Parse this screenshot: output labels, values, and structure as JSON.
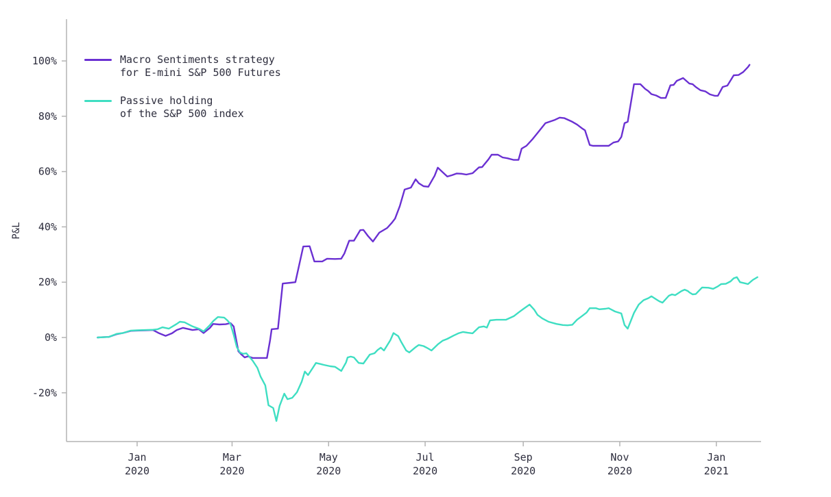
{
  "chart_data": {
    "type": "line",
    "title": "",
    "xlabel": "",
    "ylabel": "P&L",
    "x_unit": "days since 2020-01-01",
    "grid": false,
    "legend_position": "upper-left-inside",
    "ylim": [
      -37,
      115
    ],
    "xlim_days": [
      -45,
      394
    ],
    "y_ticks": [
      {
        "value": 100,
        "label": "100%"
      },
      {
        "value": 80,
        "label": "80%"
      },
      {
        "value": 60,
        "label": "60%"
      },
      {
        "value": 40,
        "label": "40%"
      },
      {
        "value": 20,
        "label": "20%"
      },
      {
        "value": 0,
        "label": "0%"
      },
      {
        "value": -20,
        "label": "-20%"
      }
    ],
    "x_ticks": [
      {
        "day": 0,
        "month": "Jan",
        "year": "2020"
      },
      {
        "day": 60,
        "month": "Mar",
        "year": "2020"
      },
      {
        "day": 121,
        "month": "May",
        "year": "2020"
      },
      {
        "day": 182,
        "month": "Jul",
        "year": "2020"
      },
      {
        "day": 244,
        "month": "Sep",
        "year": "2020"
      },
      {
        "day": 305,
        "month": "Nov",
        "year": "2020"
      },
      {
        "day": 366,
        "month": "Jan",
        "year": "2021"
      }
    ],
    "series": [
      {
        "name": "Macro Sentiments strategy\nfor E-mini S&P 500 Futures",
        "color": "#6a30d2",
        "points": [
          [
            -25,
            0
          ],
          [
            -22,
            0.1
          ],
          [
            -18,
            0.2
          ],
          [
            -13,
            1.2
          ],
          [
            -9,
            1.6
          ],
          [
            -4,
            2.4
          ],
          [
            0,
            2.5
          ],
          [
            5,
            2.6
          ],
          [
            10,
            2.7
          ],
          [
            14,
            1.5
          ],
          [
            18,
            0.6
          ],
          [
            22,
            1.5
          ],
          [
            25,
            2.7
          ],
          [
            29,
            3.5
          ],
          [
            35,
            2.7
          ],
          [
            39,
            3.0
          ],
          [
            42,
            1.6
          ],
          [
            46,
            3.5
          ],
          [
            48,
            4.9
          ],
          [
            52,
            4.7
          ],
          [
            56,
            4.8
          ],
          [
            59,
            5.2
          ],
          [
            61,
            4.0
          ],
          [
            63,
            -2.0
          ],
          [
            64,
            -5.0
          ],
          [
            66,
            -6.2
          ],
          [
            68,
            -7.2
          ],
          [
            70,
            -6.8
          ],
          [
            73,
            -7.4
          ],
          [
            78,
            -7.4
          ],
          [
            82,
            -7.4
          ],
          [
            84,
            -1.0
          ],
          [
            85,
            3.0
          ],
          [
            89,
            3.2
          ],
          [
            92,
            19.5
          ],
          [
            97,
            19.8
          ],
          [
            100,
            20.0
          ],
          [
            105,
            32.9
          ],
          [
            109,
            33.0
          ],
          [
            112,
            27.5
          ],
          [
            117,
            27.5
          ],
          [
            120,
            28.5
          ],
          [
            125,
            28.4
          ],
          [
            129,
            28.5
          ],
          [
            131,
            30.4
          ],
          [
            134,
            35.0
          ],
          [
            137,
            35.0
          ],
          [
            141,
            38.8
          ],
          [
            143,
            38.9
          ],
          [
            146,
            36.6
          ],
          [
            149,
            34.7
          ],
          [
            153,
            37.9
          ],
          [
            158,
            39.6
          ],
          [
            161,
            41.5
          ],
          [
            163,
            43.0
          ],
          [
            166,
            47.5
          ],
          [
            169,
            53.5
          ],
          [
            173,
            54.2
          ],
          [
            176,
            57.2
          ],
          [
            178,
            55.8
          ],
          [
            181,
            54.7
          ],
          [
            184,
            54.5
          ],
          [
            188,
            58.5
          ],
          [
            190,
            61.4
          ],
          [
            193,
            59.8
          ],
          [
            196,
            58.2
          ],
          [
            199,
            58.7
          ],
          [
            202,
            59.3
          ],
          [
            205,
            59.2
          ],
          [
            208,
            58.9
          ],
          [
            212,
            59.4
          ],
          [
            216,
            61.5
          ],
          [
            218,
            61.6
          ],
          [
            222,
            64.4
          ],
          [
            224,
            66.1
          ],
          [
            228,
            66.1
          ],
          [
            231,
            65.1
          ],
          [
            234,
            64.8
          ],
          [
            238,
            64.2
          ],
          [
            241,
            64.2
          ],
          [
            243,
            68.3
          ],
          [
            246,
            69.3
          ],
          [
            250,
            71.8
          ],
          [
            253,
            73.9
          ],
          [
            258,
            77.5
          ],
          [
            264,
            78.7
          ],
          [
            267,
            79.5
          ],
          [
            270,
            79.3
          ],
          [
            275,
            78.0
          ],
          [
            278,
            77.0
          ],
          [
            281,
            75.7
          ],
          [
            283,
            74.9
          ],
          [
            286,
            69.6
          ],
          [
            288,
            69.3
          ],
          [
            294,
            69.3
          ],
          [
            298,
            69.3
          ],
          [
            301,
            70.5
          ],
          [
            304,
            70.9
          ],
          [
            306,
            72.5
          ],
          [
            308,
            77.5
          ],
          [
            310,
            78.0
          ],
          [
            314,
            91.6
          ],
          [
            318,
            91.6
          ],
          [
            321,
            89.9
          ],
          [
            323,
            89.1
          ],
          [
            325,
            88.0
          ],
          [
            328,
            87.5
          ],
          [
            331,
            86.6
          ],
          [
            334,
            86.6
          ],
          [
            337,
            91.2
          ],
          [
            339,
            91.3
          ],
          [
            341,
            92.8
          ],
          [
            345,
            93.8
          ],
          [
            349,
            91.8
          ],
          [
            351,
            91.6
          ],
          [
            353,
            90.6
          ],
          [
            356,
            89.4
          ],
          [
            359,
            89.0
          ],
          [
            362,
            87.9
          ],
          [
            365,
            87.4
          ],
          [
            367,
            87.4
          ],
          [
            370,
            90.6
          ],
          [
            373,
            91.1
          ],
          [
            377,
            94.8
          ],
          [
            380,
            94.9
          ],
          [
            383,
            96.0
          ],
          [
            386,
            97.8
          ],
          [
            387,
            98.6
          ]
        ]
      },
      {
        "name": "Passive holding\nof the S&P 500 index",
        "color": "#3edec2",
        "points": [
          [
            -25,
            0
          ],
          [
            -18,
            0.2
          ],
          [
            -13,
            1.3
          ],
          [
            -9,
            1.6
          ],
          [
            -4,
            2.5
          ],
          [
            0,
            2.6
          ],
          [
            5,
            2.7
          ],
          [
            10,
            2.8
          ],
          [
            13,
            3.0
          ],
          [
            16,
            3.7
          ],
          [
            20,
            3.2
          ],
          [
            25,
            4.9
          ],
          [
            27,
            5.7
          ],
          [
            30,
            5.5
          ],
          [
            35,
            4.0
          ],
          [
            39,
            3.2
          ],
          [
            42,
            2.2
          ],
          [
            46,
            4.5
          ],
          [
            48,
            5.9
          ],
          [
            51,
            7.4
          ],
          [
            55,
            7.2
          ],
          [
            57,
            6.2
          ],
          [
            59,
            4.9
          ],
          [
            61,
            1.0
          ],
          [
            63,
            -3.5
          ],
          [
            65,
            -5.4
          ],
          [
            67,
            -5.9
          ],
          [
            69,
            -5.7
          ],
          [
            73,
            -8.4
          ],
          [
            76,
            -11.0
          ],
          [
            78,
            -14.1
          ],
          [
            81,
            -17.3
          ],
          [
            83,
            -24.5
          ],
          [
            86,
            -25.5
          ],
          [
            88,
            -30.2
          ],
          [
            90,
            -24.8
          ],
          [
            93,
            -20.3
          ],
          [
            95,
            -22.3
          ],
          [
            98,
            -21.8
          ],
          [
            101,
            -19.8
          ],
          [
            104,
            -16.0
          ],
          [
            106,
            -12.3
          ],
          [
            108,
            -13.6
          ],
          [
            111,
            -11.0
          ],
          [
            113,
            -9.2
          ],
          [
            116,
            -9.6
          ],
          [
            118,
            -9.9
          ],
          [
            122,
            -10.4
          ],
          [
            125,
            -10.6
          ],
          [
            129,
            -12.1
          ],
          [
            132,
            -9.0
          ],
          [
            133,
            -7.2
          ],
          [
            135,
            -6.9
          ],
          [
            137,
            -7.2
          ],
          [
            140,
            -9.2
          ],
          [
            143,
            -9.4
          ],
          [
            147,
            -6.2
          ],
          [
            150,
            -5.7
          ],
          [
            152,
            -4.5
          ],
          [
            154,
            -3.7
          ],
          [
            156,
            -4.7
          ],
          [
            160,
            -1.0
          ],
          [
            162,
            1.6
          ],
          [
            165,
            0.5
          ],
          [
            167,
            -1.7
          ],
          [
            170,
            -4.7
          ],
          [
            172,
            -5.4
          ],
          [
            176,
            -3.5
          ],
          [
            178,
            -2.7
          ],
          [
            181,
            -3.1
          ],
          [
            183,
            -3.7
          ],
          [
            186,
            -4.7
          ],
          [
            190,
            -2.5
          ],
          [
            193,
            -1.2
          ],
          [
            196,
            -0.5
          ],
          [
            200,
            0.7
          ],
          [
            203,
            1.5
          ],
          [
            206,
            2.0
          ],
          [
            209,
            1.7
          ],
          [
            212,
            1.5
          ],
          [
            216,
            3.7
          ],
          [
            219,
            4.0
          ],
          [
            221,
            3.6
          ],
          [
            223,
            6.2
          ],
          [
            227,
            6.4
          ],
          [
            233,
            6.4
          ],
          [
            238,
            7.7
          ],
          [
            241,
            9.0
          ],
          [
            244,
            10.3
          ],
          [
            248,
            11.9
          ],
          [
            251,
            10.0
          ],
          [
            253,
            8.2
          ],
          [
            256,
            6.9
          ],
          [
            260,
            5.7
          ],
          [
            265,
            4.9
          ],
          [
            269,
            4.5
          ],
          [
            272,
            4.4
          ],
          [
            275,
            4.6
          ],
          [
            278,
            6.4
          ],
          [
            281,
            7.7
          ],
          [
            284,
            9.0
          ],
          [
            286,
            10.6
          ],
          [
            290,
            10.6
          ],
          [
            292,
            10.2
          ],
          [
            296,
            10.4
          ],
          [
            298,
            10.6
          ],
          [
            302,
            9.4
          ],
          [
            306,
            8.7
          ],
          [
            308,
            4.5
          ],
          [
            310,
            3.2
          ],
          [
            314,
            8.9
          ],
          [
            317,
            11.9
          ],
          [
            320,
            13.5
          ],
          [
            323,
            14.2
          ],
          [
            325,
            14.9
          ],
          [
            328,
            13.8
          ],
          [
            330,
            13.1
          ],
          [
            332,
            12.6
          ],
          [
            336,
            15.1
          ],
          [
            338,
            15.6
          ],
          [
            340,
            15.3
          ],
          [
            344,
            16.8
          ],
          [
            346,
            17.3
          ],
          [
            348,
            16.8
          ],
          [
            349,
            16.3
          ],
          [
            351,
            15.6
          ],
          [
            353,
            15.7
          ],
          [
            357,
            18.1
          ],
          [
            361,
            18.0
          ],
          [
            364,
            17.6
          ],
          [
            367,
            18.5
          ],
          [
            369,
            19.3
          ],
          [
            372,
            19.4
          ],
          [
            375,
            20.3
          ],
          [
            377,
            21.4
          ],
          [
            379,
            21.8
          ],
          [
            381,
            20.0
          ],
          [
            384,
            19.6
          ],
          [
            386,
            19.3
          ],
          [
            389,
            20.8
          ],
          [
            392,
            21.8
          ]
        ]
      }
    ],
    "axis_color": "#b3b3b3",
    "text_color": "#2d2d3d"
  }
}
